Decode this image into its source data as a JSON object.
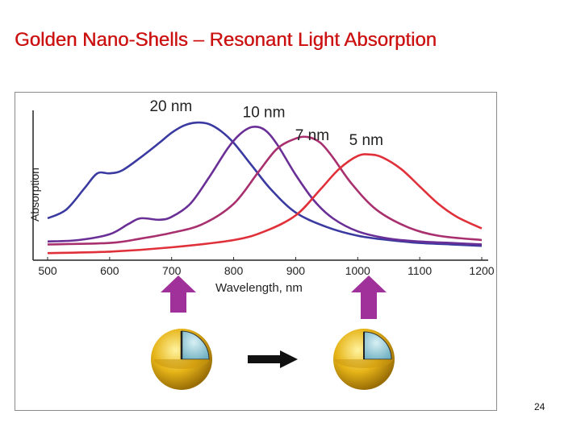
{
  "slide": {
    "title": "Golden Nano-Shells – Resonant Light Absorption",
    "page_number": "24"
  },
  "colors": {
    "title": "#cc1111",
    "series_20nm": "#3a3aa0",
    "series_10nm": "#6a2f96",
    "series_7nm": "#a8306e",
    "series_5nm": "#e0303a",
    "arrow_up": "#a0309a",
    "arrow_right": "#111111",
    "shell_gold": "#e6b418",
    "core_blue": "#9fd0dc"
  },
  "icons": {
    "left_arrow": "up-arrow-icon",
    "right_arrow": "up-arrow-icon",
    "transition_arrow": "right-arrow-icon",
    "left_particle": "nanoshell-thick-icon",
    "right_particle": "nanoshell-thin-icon"
  },
  "chart_data": {
    "type": "line",
    "xlabel": "Wavelength, nm",
    "ylabel": "Absorption",
    "xlim": [
      500,
      1200
    ],
    "ylim": [
      0,
      1
    ],
    "x_ticks": [
      "500",
      "600",
      "700",
      "800",
      "900",
      "1000",
      "1100",
      "1200"
    ],
    "y_ticks_shown": false,
    "grid": false,
    "legend": "labels placed at curve peaks",
    "series": [
      {
        "name": "20 nm",
        "color": "#3a3aa0",
        "x": [
          500,
          530,
          560,
          580,
          600,
          620,
          650,
          680,
          700,
          720,
          740,
          760,
          780,
          800,
          830,
          860,
          900,
          950,
          1000,
          1050,
          1100,
          1150,
          1200
        ],
        "y": [
          0.3,
          0.36,
          0.51,
          0.61,
          0.61,
          0.63,
          0.72,
          0.82,
          0.89,
          0.94,
          0.96,
          0.95,
          0.9,
          0.82,
          0.66,
          0.5,
          0.34,
          0.24,
          0.18,
          0.15,
          0.13,
          0.12,
          0.11
        ]
      },
      {
        "name": "10 nm",
        "color": "#6a2f96",
        "x": [
          500,
          550,
          600,
          630,
          650,
          680,
          700,
          730,
          760,
          790,
          810,
          830,
          850,
          870,
          900,
          930,
          960,
          1000,
          1050,
          1100,
          1150,
          1200
        ],
        "y": [
          0.14,
          0.15,
          0.19,
          0.26,
          0.3,
          0.29,
          0.31,
          0.4,
          0.58,
          0.78,
          0.88,
          0.93,
          0.91,
          0.81,
          0.6,
          0.42,
          0.3,
          0.21,
          0.16,
          0.14,
          0.13,
          0.12
        ]
      },
      {
        "name": "7 nm",
        "color": "#a8306e",
        "x": [
          500,
          600,
          650,
          700,
          750,
          800,
          840,
          870,
          900,
          920,
          940,
          960,
          990,
          1030,
          1080,
          1130,
          1200
        ],
        "y": [
          0.12,
          0.13,
          0.16,
          0.2,
          0.26,
          0.4,
          0.62,
          0.78,
          0.85,
          0.86,
          0.82,
          0.72,
          0.54,
          0.36,
          0.24,
          0.18,
          0.15
        ]
      },
      {
        "name": "5 nm",
        "color": "#e0303a",
        "x": [
          500,
          600,
          700,
          800,
          850,
          900,
          940,
          970,
          1000,
          1020,
          1040,
          1070,
          1100,
          1130,
          1160,
          1200
        ],
        "y": [
          0.06,
          0.07,
          0.1,
          0.15,
          0.21,
          0.32,
          0.5,
          0.64,
          0.73,
          0.74,
          0.72,
          0.64,
          0.52,
          0.4,
          0.31,
          0.23
        ]
      }
    ]
  }
}
